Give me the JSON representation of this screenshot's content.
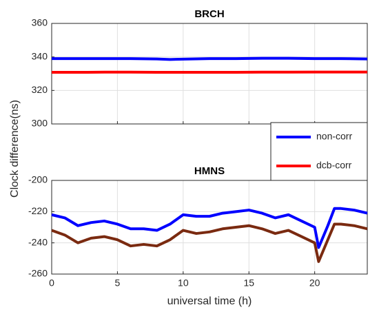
{
  "chart_data": [
    {
      "type": "line",
      "title": "BRCH",
      "ylabel": "Clock difference(ns)",
      "x": [
        0,
        2,
        4,
        6,
        8,
        9,
        10,
        12,
        14,
        16,
        18,
        20,
        22,
        24
      ],
      "series": [
        {
          "name": "non-corr",
          "color": "#0000ff",
          "values": [
            339,
            339,
            339,
            339,
            338.8,
            338.5,
            338.7,
            339,
            339,
            339.2,
            339.2,
            339,
            339,
            338.8
          ]
        },
        {
          "name": "dcb-corr",
          "color": "#ff0000",
          "values": [
            330.8,
            330.8,
            330.9,
            330.9,
            330.8,
            330.8,
            330.8,
            330.8,
            330.8,
            330.9,
            330.9,
            331,
            331,
            331
          ]
        }
      ],
      "xlim": [
        0,
        24
      ],
      "xticks": [
        0,
        5,
        10,
        15,
        20
      ],
      "ylim": [
        300,
        360
      ],
      "yticks": [
        300,
        320,
        340,
        360
      ],
      "grid": true,
      "legend": "lower right"
    },
    {
      "type": "line",
      "title": "HMNS",
      "xlabel": "universal time (h)",
      "x": [
        0,
        1,
        2,
        3,
        4,
        5,
        6,
        7,
        8,
        9,
        10,
        11,
        12,
        13,
        14,
        15,
        16,
        17,
        18,
        19,
        20,
        20.3,
        21,
        21.5,
        22,
        23,
        24
      ],
      "series": [
        {
          "name": "non-corr",
          "color": "#0000ff",
          "values": [
            -222,
            -224,
            -229,
            -227,
            -226,
            -228,
            -231,
            -231,
            -232,
            -228,
            -222,
            -223,
            -223,
            -221,
            -220,
            -219,
            -221,
            -224,
            -222,
            -226,
            -230,
            -243,
            -229,
            -218,
            -218,
            -219,
            -221
          ]
        },
        {
          "name": "dcb-corr",
          "color": "#7a2a10",
          "values": [
            -232,
            -235,
            -240,
            -237,
            -236,
            -238,
            -242,
            -241,
            -242,
            -238,
            -232,
            -234,
            -233,
            -231,
            -230,
            -229,
            -231,
            -234,
            -232,
            -236,
            -240,
            -252,
            -238,
            -228,
            -228,
            -229,
            -231
          ]
        }
      ],
      "xlim": [
        0,
        24
      ],
      "xticks": [
        0,
        5,
        10,
        15,
        20
      ],
      "ylim": [
        -260,
        -200
      ],
      "yticks": [
        -260,
        -240,
        -220,
        -200
      ],
      "grid": true
    }
  ]
}
